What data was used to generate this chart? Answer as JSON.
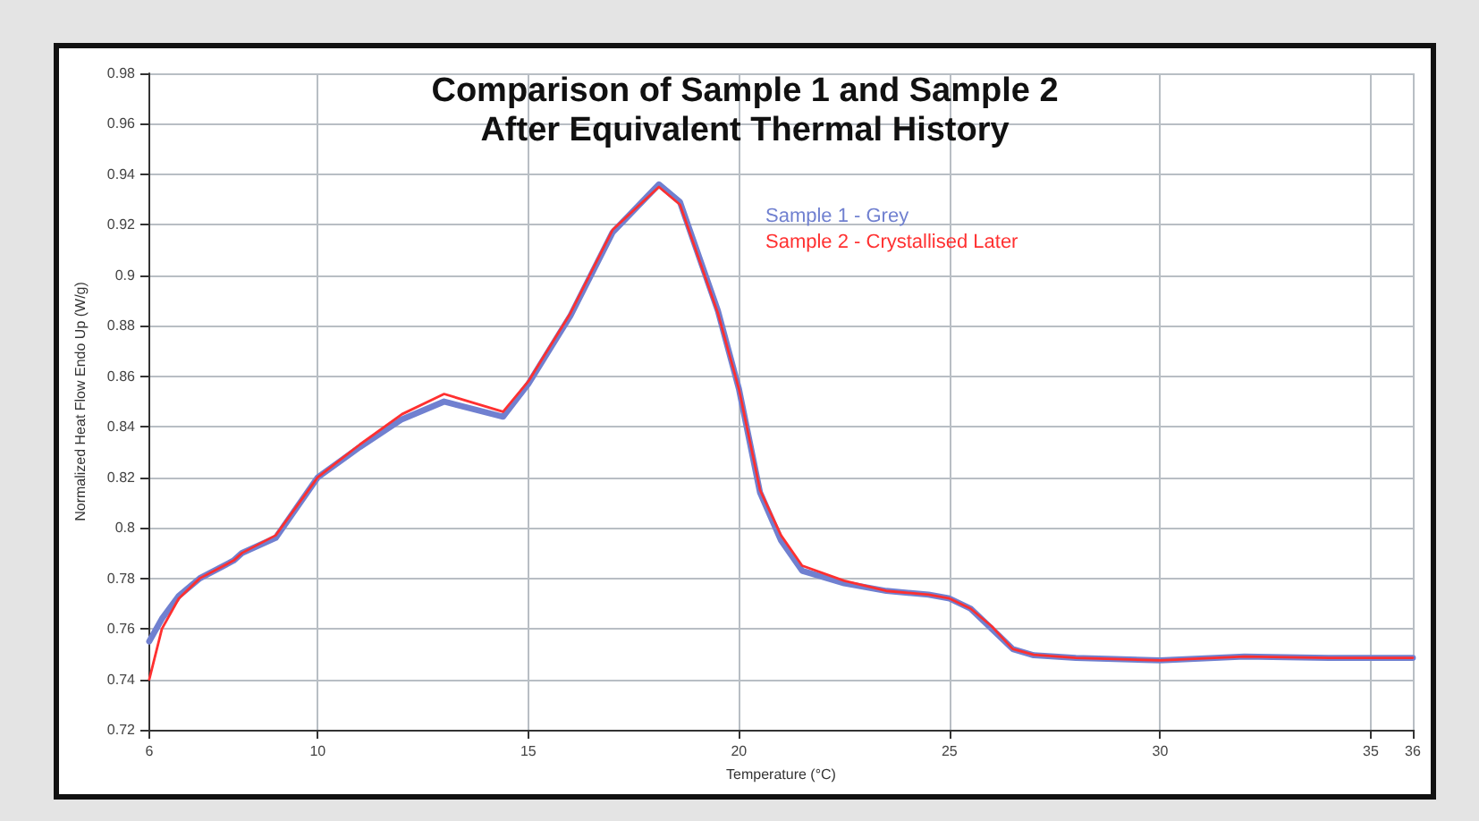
{
  "chart_data": {
    "type": "line",
    "title": "Comparison of Sample 1 and Sample 2\nAfter Equivalent Thermal History",
    "xlabel": "Temperature (°C)",
    "ylabel": "Normalized Heat Flow Endo Up (W/g)",
    "x": [
      6,
      6.3,
      6.7,
      7.2,
      8,
      8.2,
      9,
      10,
      11,
      12,
      13,
      14.4,
      15,
      16,
      17,
      18.1,
      18.6,
      19.5,
      20,
      20.5,
      21,
      21.5,
      22.5,
      23.5,
      24.5,
      25,
      25.5,
      26,
      26.5,
      27,
      28,
      30,
      32,
      34,
      36
    ],
    "series": [
      {
        "name": "Sample 1 - Grey",
        "color": "#7080d0",
        "values": [
          0.755,
          0.764,
          0.773,
          0.78,
          0.787,
          0.79,
          0.796,
          0.82,
          0.832,
          0.843,
          0.85,
          0.844,
          0.857,
          0.884,
          0.917,
          0.936,
          0.929,
          0.886,
          0.855,
          0.814,
          0.795,
          0.783,
          0.778,
          0.775,
          0.7735,
          0.772,
          0.768,
          0.76,
          0.752,
          0.7495,
          0.7485,
          0.7475,
          0.749,
          0.7485,
          0.7485
        ]
      },
      {
        "name": "Sample 2 - Crystallised Later",
        "color": "#ff3030",
        "values": [
          0.74,
          0.76,
          0.772,
          0.78,
          0.787,
          0.79,
          0.797,
          0.82,
          0.833,
          0.845,
          0.853,
          0.846,
          0.858,
          0.885,
          0.918,
          0.935,
          0.928,
          0.885,
          0.855,
          0.815,
          0.797,
          0.785,
          0.779,
          0.775,
          0.7735,
          0.772,
          0.768,
          0.761,
          0.752,
          0.7497,
          0.7485,
          0.7475,
          0.749,
          0.7485,
          0.7485
        ]
      }
    ],
    "xlim": [
      6,
      36
    ],
    "xticks": [
      6,
      10,
      15,
      20,
      25,
      30,
      35,
      36
    ],
    "ylim": [
      0.72,
      0.98
    ],
    "yticks": [
      0.72,
      0.74,
      0.76,
      0.78,
      0.8,
      0.82,
      0.84,
      0.86,
      0.88,
      0.9,
      0.92,
      0.94,
      0.96,
      0.98
    ],
    "grid": true,
    "legend": "top",
    "marker": "none",
    "line_style": "solid"
  }
}
